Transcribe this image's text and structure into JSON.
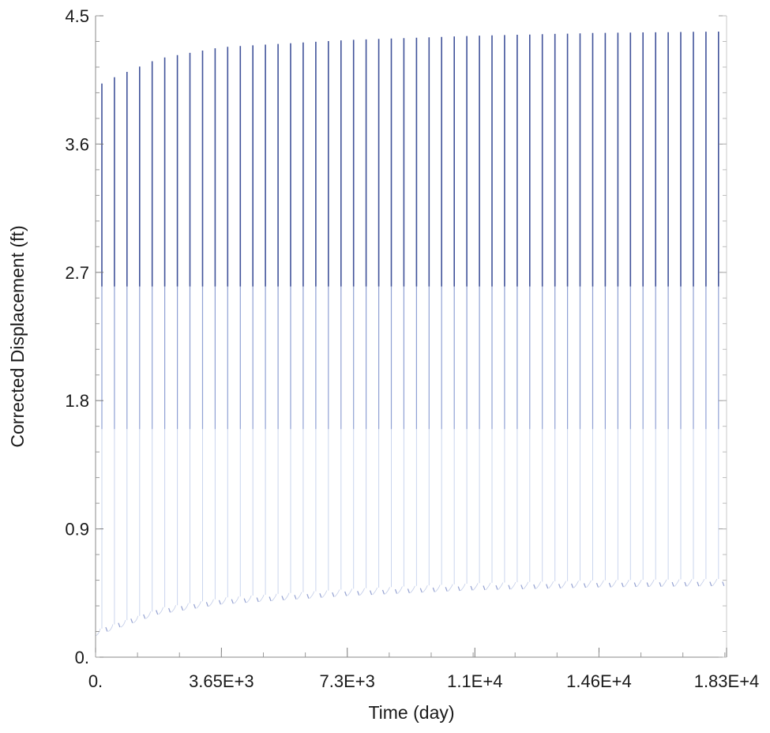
{
  "chart_data": {
    "type": "line",
    "xlabel": "Time (day)",
    "ylabel": "Corrected Displacement (ft)",
    "xlim": [
      0,
      18300
    ],
    "ylim": [
      0,
      4.5
    ],
    "x_ticks": [
      {
        "value": 0,
        "label": "0."
      },
      {
        "value": 3650,
        "label": "3.65E+3"
      },
      {
        "value": 7300,
        "label": "7.3E+3"
      },
      {
        "value": 11000,
        "label": "1.1E+4"
      },
      {
        "value": 14600,
        "label": "1.46E+4"
      },
      {
        "value": 18300,
        "label": "1.83E+4"
      }
    ],
    "y_ticks": [
      {
        "value": 0,
        "label": "0."
      },
      {
        "value": 0.9,
        "label": "0.9"
      },
      {
        "value": 1.8,
        "label": "1.8"
      },
      {
        "value": 2.7,
        "label": "2.7"
      },
      {
        "value": 3.6,
        "label": "3.6"
      },
      {
        "value": 4.5,
        "label": "4.5"
      }
    ],
    "grid": false,
    "series": [
      {
        "color": "#2b3f8f",
        "cycle_period_days": 365,
        "cycle_count": 50,
        "peak_envelope": [
          {
            "x": 0,
            "y": 4.0
          },
          {
            "x": 365,
            "y": 4.05
          },
          {
            "x": 1825,
            "y": 4.2
          },
          {
            "x": 3650,
            "y": 4.28
          },
          {
            "x": 7300,
            "y": 4.33
          },
          {
            "x": 11000,
            "y": 4.36
          },
          {
            "x": 14600,
            "y": 4.38
          },
          {
            "x": 18300,
            "y": 4.39
          }
        ],
        "trough_envelope": [
          {
            "x": 0,
            "y": 0.15
          },
          {
            "x": 1825,
            "y": 0.3
          },
          {
            "x": 3650,
            "y": 0.37
          },
          {
            "x": 7300,
            "y": 0.43
          },
          {
            "x": 11000,
            "y": 0.47
          },
          {
            "x": 14600,
            "y": 0.49
          },
          {
            "x": 18300,
            "y": 0.5
          }
        ]
      }
    ]
  }
}
